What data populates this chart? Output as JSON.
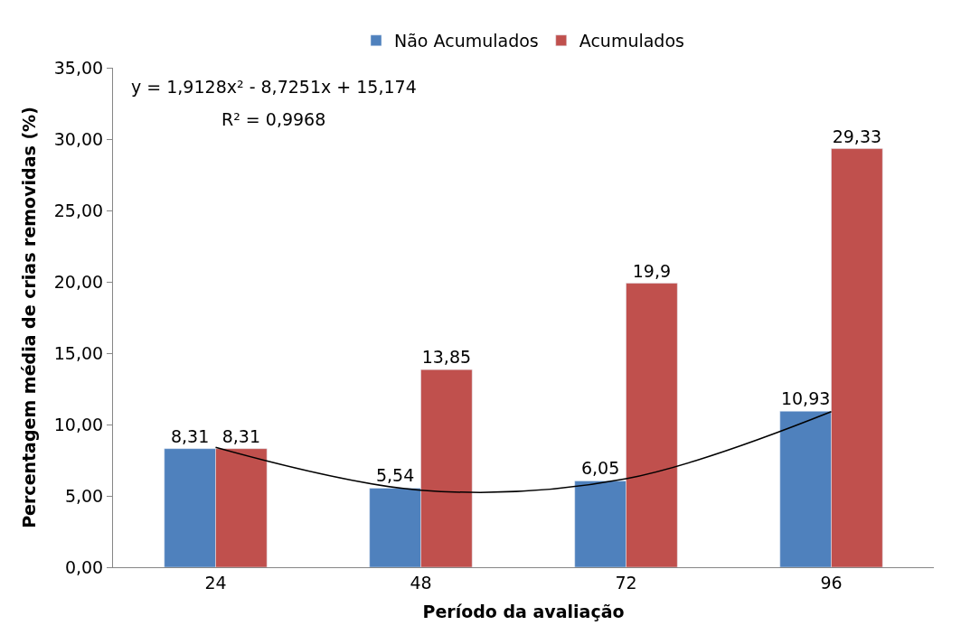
{
  "chart_data": {
    "type": "bar",
    "xlabel": "Período da avaliação",
    "ylabel": "Percentagem média de crias removidas (%)",
    "categories": [
      "24",
      "48",
      "72",
      "96"
    ],
    "series": [
      {
        "name": "Não Acumulados",
        "color": "#4f81bd",
        "values": [
          8.31,
          5.54,
          6.05,
          10.93
        ],
        "value_labels": [
          "8,31",
          "5,54",
          "6,05",
          "10,93"
        ]
      },
      {
        "name": "Acumulados",
        "color": "#c0504d",
        "values": [
          8.31,
          13.85,
          19.9,
          29.33
        ],
        "value_labels": [
          "8,31",
          "13,85",
          "19,9",
          "29,33"
        ]
      },
      {
        "type": "line",
        "color": "#000000",
        "values": [
          8.4,
          5.4,
          6.2,
          10.9
        ]
      }
    ],
    "ylim": [
      0,
      35
    ],
    "yticks": [
      {
        "value": 0,
        "label": "0,00"
      },
      {
        "value": 5,
        "label": "5,00"
      },
      {
        "value": 10,
        "label": "10,00"
      },
      {
        "value": 15,
        "label": "15,00"
      },
      {
        "value": 20,
        "label": "20,00"
      },
      {
        "value": 25,
        "label": "25,00"
      },
      {
        "value": 30,
        "label": "30,00"
      },
      {
        "value": 35,
        "label": "35,00"
      }
    ],
    "annotations": [
      "y = 1,9128x² - 8,7251x + 15,174",
      "R² = 0,9968"
    ],
    "grid": false,
    "legend": "top"
  }
}
